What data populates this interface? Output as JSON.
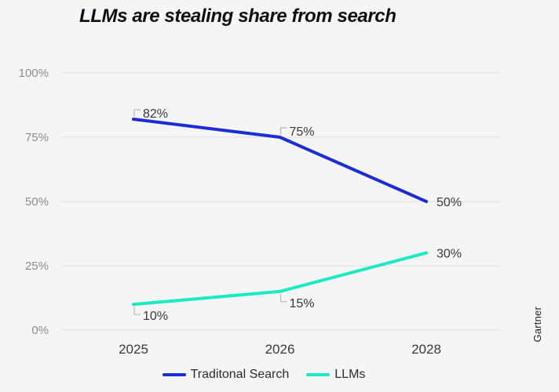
{
  "title": "LLMs are stealing share from search",
  "source_label": "Gartner",
  "colors": {
    "background": "#f5f5f5",
    "traditional_search": "#1b2dd7",
    "llms": "#19ecc3",
    "grid": "#e3e3e4",
    "leader": "#b8b8b8",
    "axis_text": "#8b8b8b",
    "x_axis_text": "#3a3a3a",
    "label_text": "#3a3a3a",
    "title_text": "#0d0f14"
  },
  "chart_data": {
    "type": "line",
    "title": "LLMs are stealing share from search",
    "x_categories": [
      "2025",
      "2026",
      "2028"
    ],
    "series": [
      {
        "name": "Traditonal Search",
        "color_key": "traditional_search",
        "values": [
          82,
          75,
          50
        ],
        "point_labels": [
          "82%",
          "75%",
          "50%"
        ]
      },
      {
        "name": "LLMs",
        "color_key": "llms",
        "values": [
          10,
          15,
          30
        ],
        "point_labels": [
          "10%",
          "15%",
          "30%"
        ]
      }
    ],
    "ylim": [
      0,
      100
    ],
    "yticks": [
      {
        "value": 0,
        "label": "0%"
      },
      {
        "value": 25,
        "label": "25%"
      },
      {
        "value": 50,
        "label": "50%"
      },
      {
        "value": 75,
        "label": "75%"
      },
      {
        "value": 100,
        "label": "100%"
      }
    ],
    "grid": "horizontal",
    "legend_position": "bottom",
    "source": "Gartner"
  }
}
